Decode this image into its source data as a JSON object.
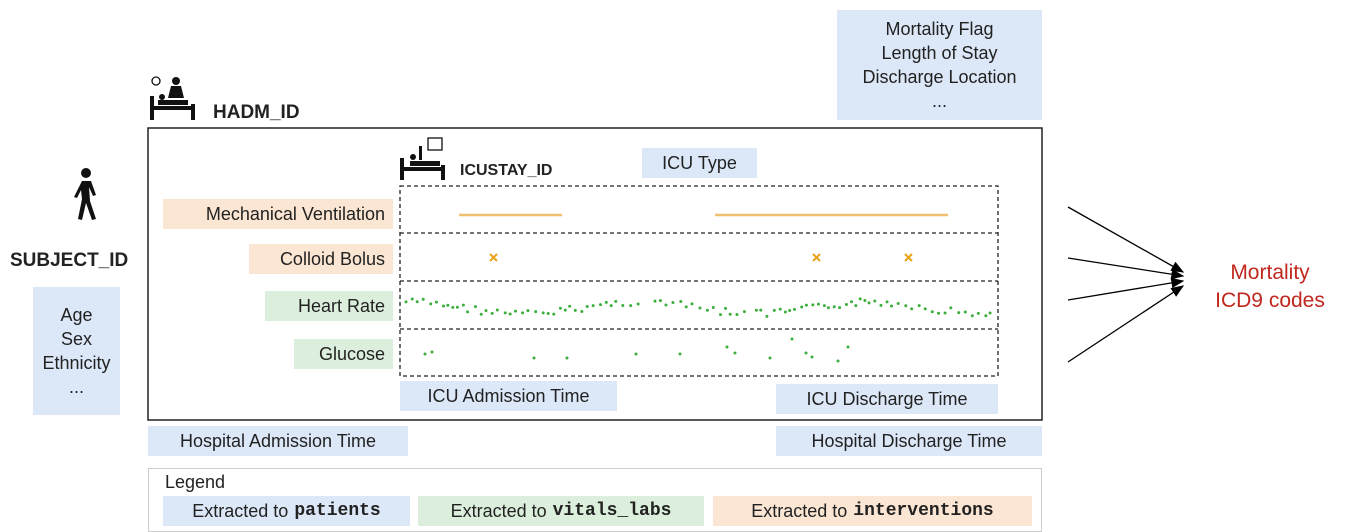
{
  "outcomes_box": [
    "Mortality Flag",
    "Length of Stay",
    "Discharge Location",
    "..."
  ],
  "hospital": {
    "id_label": "HADM_ID",
    "admission": "Hospital Admission Time",
    "discharge": "Hospital Discharge Time"
  },
  "icu": {
    "id_label": "ICUSTAY_ID",
    "type": "ICU Type",
    "admission": "ICU Admission Time",
    "discharge": "ICU Discharge Time",
    "rows": [
      "Mechanical Ventilation",
      "Colloid Bolus",
      "Heart Rate",
      "Glucose"
    ]
  },
  "subject": {
    "id_label": "SUBJECT_ID",
    "attributes": [
      "Age",
      "Sex",
      "Ethnicity",
      "..."
    ]
  },
  "targets": [
    "Mortality",
    "ICD9 codes"
  ],
  "legend": {
    "title": "Legend",
    "items": [
      {
        "prefix": "Extracted to",
        "table": "patients"
      },
      {
        "prefix": "Extracted to",
        "table": "vitals_labs"
      },
      {
        "prefix": "Extracted to",
        "table": "interventions"
      }
    ]
  }
}
